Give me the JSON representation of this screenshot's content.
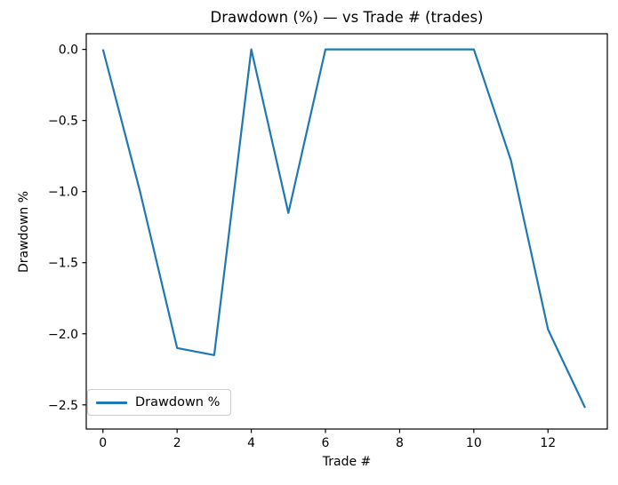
{
  "chart_data": {
    "type": "line",
    "title": "Drawdown (%) — vs Trade # (trades)",
    "xlabel": "Trade #",
    "ylabel": "Drawdown %",
    "x": [
      0,
      1,
      2,
      3,
      4,
      5,
      6,
      7,
      8,
      9,
      10,
      11,
      12,
      13
    ],
    "series": [
      {
        "name": "Drawdown %",
        "color": "#1f77b4",
        "values": [
          0.0,
          -1.0,
          -2.1,
          -2.15,
          0.0,
          -1.15,
          0.0,
          0.0,
          0.0,
          0.0,
          0.0,
          -0.78,
          -1.97,
          -2.52
        ]
      }
    ],
    "xticks": [
      0,
      2,
      4,
      6,
      8,
      10,
      12
    ],
    "xtick_labels": [
      "0",
      "2",
      "4",
      "6",
      "8",
      "10",
      "12"
    ],
    "yticks": [
      0.0,
      -0.5,
      -1.0,
      -1.5,
      -2.0,
      -2.5
    ],
    "ytick_labels": [
      "0.0",
      "−0.5",
      "−1.0",
      "−1.5",
      "−2.0",
      "−2.5"
    ],
    "xlim": [
      -0.45,
      13.6
    ],
    "ylim": [
      -2.67,
      0.11
    ],
    "grid": false,
    "legend": {
      "position": "lower left",
      "entries": [
        {
          "label": "Drawdown %",
          "color": "#1f77b4"
        }
      ]
    },
    "colors": {
      "line": "#1f77b4",
      "text": "#000000",
      "spine": "#000000",
      "background": "#ffffff"
    }
  }
}
